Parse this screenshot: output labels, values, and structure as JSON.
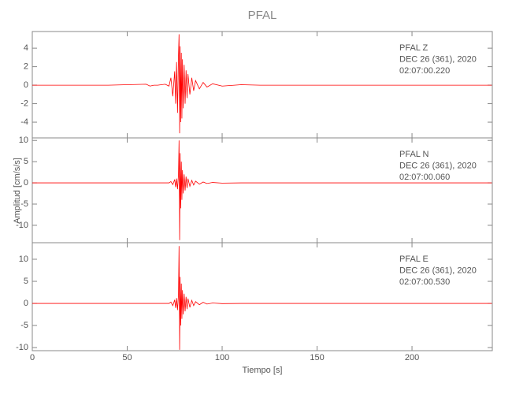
{
  "chart_data": [
    {
      "type": "line",
      "title": "PFAL",
      "annotations": [
        "PFAL   Z",
        "DEC 26 (361), 2020",
        "02:07:00.220"
      ],
      "xlim": [
        0,
        242.3
      ],
      "xticks": [
        0,
        50,
        100,
        150,
        200
      ],
      "ylim": [
        -5.7,
        5.8
      ],
      "yticks": [
        4,
        2,
        0,
        -2,
        -4
      ],
      "series": [
        {
          "color": "#ff0000",
          "x": [
            0,
            20,
            40,
            60,
            62,
            64,
            66,
            70,
            72,
            73,
            74,
            75,
            75.5,
            76,
            76.5,
            77,
            77.3,
            77.6,
            77.9,
            78.2,
            78.5,
            78.8,
            79.1,
            79.5,
            80,
            80.5,
            81,
            81.5,
            82,
            83,
            84,
            85,
            86,
            88,
            90,
            92,
            95,
            100,
            110,
            120,
            150,
            200,
            242
          ],
          "values": [
            0,
            0,
            0,
            0.1,
            -0.1,
            0,
            0,
            0.1,
            -0.1,
            0.8,
            -1.2,
            1.5,
            -2,
            2.5,
            -3,
            3.2,
            5.5,
            -5.2,
            4.2,
            -4,
            3.5,
            -3.6,
            2.8,
            -2.5,
            2.2,
            -2,
            1.6,
            -1.4,
            1.2,
            -1,
            0.8,
            -0.6,
            0.5,
            -0.4,
            0.3,
            -0.2,
            0.15,
            -0.1,
            0.05,
            0,
            0,
            0,
            0
          ]
        }
      ]
    },
    {
      "type": "line",
      "y_label": "Amplitud [cm/s/s]",
      "annotations": [
        "PFAL   N",
        "DEC 26 (361), 2020",
        "02:07:00.060"
      ],
      "xlim": [
        0,
        242.3
      ],
      "xticks": [
        0,
        50,
        100,
        150,
        200
      ],
      "ylim": [
        -14.1,
        10.6
      ],
      "yticks": [
        10,
        5,
        0,
        -5,
        -10
      ],
      "series": [
        {
          "color": "#ff0000",
          "x": [
            0,
            20,
            40,
            60,
            62,
            64,
            66,
            70,
            72,
            73,
            74,
            75,
            75.5,
            76,
            76.5,
            77,
            77.3,
            77.6,
            77.9,
            78.2,
            78.5,
            78.8,
            79.1,
            79.5,
            80,
            80.5,
            81,
            81.5,
            82,
            83,
            84,
            85,
            86,
            88,
            90,
            92,
            95,
            100,
            110,
            120,
            150,
            200,
            242
          ],
          "values": [
            0,
            0,
            0,
            0,
            0,
            0,
            0,
            0,
            0,
            0.3,
            -0.4,
            0.8,
            -1,
            1,
            -1.5,
            2,
            10,
            -13.5,
            7,
            -6,
            5,
            -4,
            3,
            -2.5,
            2,
            -1.8,
            1.5,
            -1.2,
            1,
            -0.8,
            0.6,
            -0.5,
            0.4,
            -0.3,
            0.2,
            -0.15,
            0.1,
            -0.05,
            0,
            0,
            0,
            0,
            0
          ]
        }
      ]
    },
    {
      "type": "line",
      "x_label": "Tiempo [s]",
      "annotations": [
        "PFAL   E",
        "DEC 26 (361), 2020",
        "02:07:00.530"
      ],
      "xlim": [
        0,
        242.3
      ],
      "xticks": [
        0,
        50,
        100,
        150,
        200
      ],
      "ylim": [
        -10.7,
        13.75
      ],
      "yticks": [
        10,
        5,
        0,
        -5,
        -10
      ],
      "series": [
        {
          "color": "#ff0000",
          "x": [
            0,
            20,
            40,
            60,
            62,
            64,
            66,
            70,
            72,
            73,
            74,
            75,
            75.5,
            76,
            76.5,
            77,
            77.3,
            77.6,
            77.9,
            78.2,
            78.5,
            78.8,
            79.1,
            79.5,
            80,
            80.5,
            81,
            81.5,
            82,
            83,
            84,
            85,
            86,
            88,
            90,
            92,
            95,
            100,
            110,
            120,
            150,
            200,
            242
          ],
          "values": [
            0,
            0,
            0,
            0,
            0,
            0,
            0,
            0,
            0,
            0.3,
            -0.5,
            0.8,
            -1,
            1.2,
            -1.5,
            2,
            13,
            -10.5,
            6,
            -5,
            4.5,
            -3.5,
            3,
            -2.5,
            2.2,
            -1.8,
            1.5,
            -1.3,
            1.1,
            -0.9,
            0.7,
            -0.5,
            0.4,
            -0.3,
            0.25,
            -0.15,
            0.1,
            -0.05,
            0,
            0,
            0,
            0,
            0
          ]
        }
      ]
    }
  ]
}
